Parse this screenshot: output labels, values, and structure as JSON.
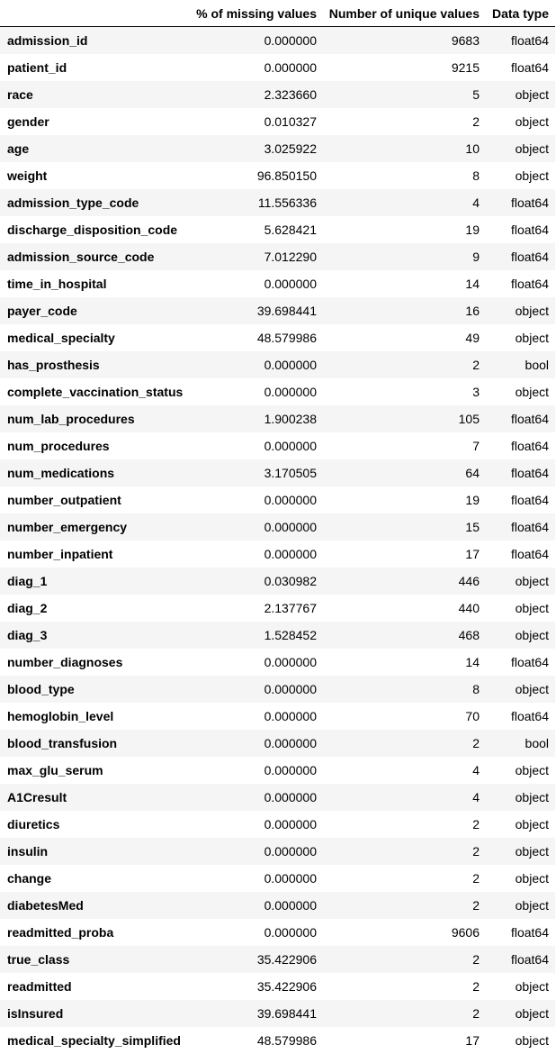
{
  "table": {
    "columns": [
      "",
      "% of missing values",
      "Number of unique values",
      "Data type"
    ],
    "rows": [
      [
        "admission_id",
        "0.000000",
        "9683",
        "float64"
      ],
      [
        "patient_id",
        "0.000000",
        "9215",
        "float64"
      ],
      [
        "race",
        "2.323660",
        "5",
        "object"
      ],
      [
        "gender",
        "0.010327",
        "2",
        "object"
      ],
      [
        "age",
        "3.025922",
        "10",
        "object"
      ],
      [
        "weight",
        "96.850150",
        "8",
        "object"
      ],
      [
        "admission_type_code",
        "11.556336",
        "4",
        "float64"
      ],
      [
        "discharge_disposition_code",
        "5.628421",
        "19",
        "float64"
      ],
      [
        "admission_source_code",
        "7.012290",
        "9",
        "float64"
      ],
      [
        "time_in_hospital",
        "0.000000",
        "14",
        "float64"
      ],
      [
        "payer_code",
        "39.698441",
        "16",
        "object"
      ],
      [
        "medical_specialty",
        "48.579986",
        "49",
        "object"
      ],
      [
        "has_prosthesis",
        "0.000000",
        "2",
        "bool"
      ],
      [
        "complete_vaccination_status",
        "0.000000",
        "3",
        "object"
      ],
      [
        "num_lab_procedures",
        "1.900238",
        "105",
        "float64"
      ],
      [
        "num_procedures",
        "0.000000",
        "7",
        "float64"
      ],
      [
        "num_medications",
        "3.170505",
        "64",
        "float64"
      ],
      [
        "number_outpatient",
        "0.000000",
        "19",
        "float64"
      ],
      [
        "number_emergency",
        "0.000000",
        "15",
        "float64"
      ],
      [
        "number_inpatient",
        "0.000000",
        "17",
        "float64"
      ],
      [
        "diag_1",
        "0.030982",
        "446",
        "object"
      ],
      [
        "diag_2",
        "2.137767",
        "440",
        "object"
      ],
      [
        "diag_3",
        "1.528452",
        "468",
        "object"
      ],
      [
        "number_diagnoses",
        "0.000000",
        "14",
        "float64"
      ],
      [
        "blood_type",
        "0.000000",
        "8",
        "object"
      ],
      [
        "hemoglobin_level",
        "0.000000",
        "70",
        "float64"
      ],
      [
        "blood_transfusion",
        "0.000000",
        "2",
        "bool"
      ],
      [
        "max_glu_serum",
        "0.000000",
        "4",
        "object"
      ],
      [
        "A1Cresult",
        "0.000000",
        "4",
        "object"
      ],
      [
        "diuretics",
        "0.000000",
        "2",
        "object"
      ],
      [
        "insulin",
        "0.000000",
        "2",
        "object"
      ],
      [
        "change",
        "0.000000",
        "2",
        "object"
      ],
      [
        "diabetesMed",
        "0.000000",
        "2",
        "object"
      ],
      [
        "readmitted_proba",
        "0.000000",
        "9606",
        "float64"
      ],
      [
        "true_class",
        "35.422906",
        "2",
        "float64"
      ],
      [
        "readmitted",
        "35.422906",
        "2",
        "object"
      ],
      [
        "isInsured",
        "39.698441",
        "2",
        "object"
      ],
      [
        "medical_specialty_simplified",
        "48.579986",
        "17",
        "object"
      ]
    ]
  }
}
